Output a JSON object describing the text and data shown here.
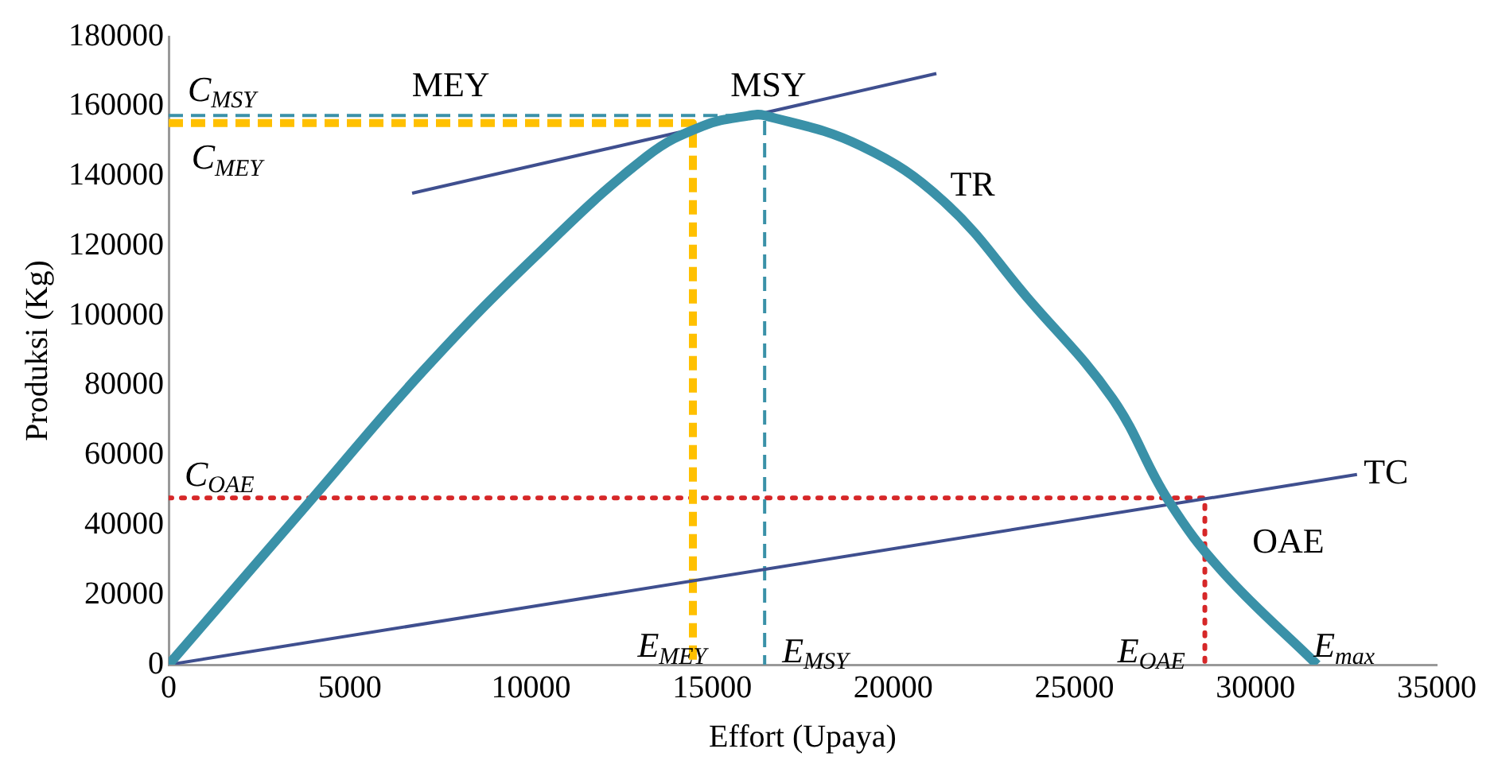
{
  "chart_data": {
    "type": "line",
    "xlabel": "Effort (Upaya)",
    "ylabel": "Produksi (Kg)",
    "xlim": [
      0,
      35000
    ],
    "xticks": [
      0,
      5000,
      10000,
      15000,
      20000,
      25000,
      30000,
      35000
    ],
    "ylim": [
      0,
      180000
    ],
    "yticks": [
      0,
      20000,
      40000,
      60000,
      80000,
      100000,
      120000,
      140000,
      160000,
      180000
    ],
    "grid": false,
    "legend": false,
    "marker": "none",
    "series": [
      {
        "color": "#3a91a8",
        "line_style": "solid",
        "x": [
          0,
          3940,
          7050,
          10100,
          13200,
          14750,
          16000,
          16450,
          19100,
          21400,
          23700,
          26050,
          27580,
          29100,
          31700
        ],
        "values": [
          0,
          47300,
          84500,
          116800,
          145700,
          154400,
          157300,
          157400,
          148700,
          132700,
          105200,
          76300,
          47300,
          26500,
          0
        ]
      },
      {
        "color": "#3f4f8f",
        "line_style": "solid",
        "x": [
          0,
          32800
        ],
        "values": [
          0,
          54500
        ]
      },
      {
        "color": "#3f4f8f",
        "line_style": "solid",
        "x": [
          6720,
          21190
        ],
        "values": [
          135100,
          169400
        ]
      },
      {
        "color": "#3a91a8",
        "line_style": "dashed",
        "x": [
          0,
          16450,
          16450
        ],
        "values": [
          157400,
          157400,
          0
        ]
      },
      {
        "color": "#ffc000",
        "line_style": "dashed",
        "x": [
          0,
          14470,
          14470
        ],
        "values": [
          155200,
          155200,
          0
        ]
      },
      {
        "color": "#d62728",
        "line_style": "dotted",
        "x": [
          0,
          28600,
          28600
        ],
        "values": [
          47800,
          47800,
          0
        ]
      }
    ],
    "annotations": [
      "MEY",
      "MSY",
      "TR",
      "TC",
      "OAE",
      "C$_{MSY}$",
      "C$_{MEY}$",
      "C$_{OAE}$",
      "E$_{MEY}$",
      "E$_{MSY}$",
      "E$_{OAE}$",
      "E$_{max}$"
    ]
  }
}
